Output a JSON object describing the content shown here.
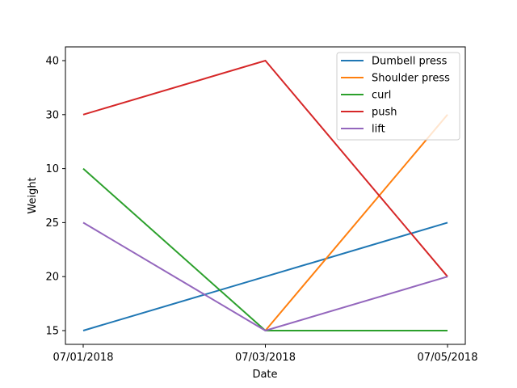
{
  "chart_data": {
    "type": "line",
    "title": "",
    "xlabel": "Date",
    "ylabel": "Weight",
    "categories": [
      "07/01/2018",
      "07/03/2018",
      "07/05/2018"
    ],
    "y_categories": [
      "15",
      "20",
      "25",
      "10",
      "30",
      "40"
    ],
    "grid": false,
    "legend": "top-right",
    "series": [
      {
        "name": "Dumbell press",
        "color": "#1f77b4",
        "values": [
          "15",
          "20",
          "25"
        ]
      },
      {
        "name": "Shoulder press",
        "color": "#ff7f0e",
        "values": [
          null,
          "15",
          "30"
        ]
      },
      {
        "name": "curl",
        "color": "#2ca02c",
        "values": [
          "10",
          "15",
          "15"
        ]
      },
      {
        "name": "push",
        "color": "#d62728",
        "values": [
          "30",
          "40",
          "20"
        ]
      },
      {
        "name": "lift",
        "color": "#9467bd",
        "values": [
          "25",
          "15",
          "20"
        ]
      }
    ]
  }
}
